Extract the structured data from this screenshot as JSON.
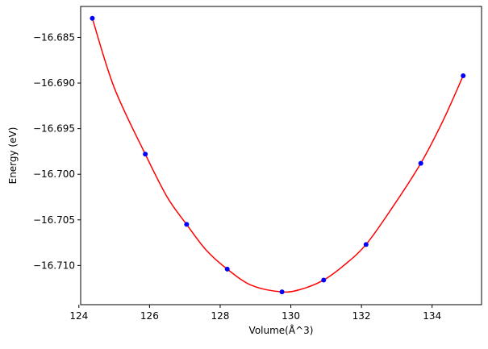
{
  "chart_data": {
    "type": "scatter",
    "title": "",
    "xlabel": "Volume(Å^3)",
    "ylabel": "Energy (eV)",
    "xlim": [
      124.05,
      135.4
    ],
    "ylim": [
      -16.7143,
      -16.6816
    ],
    "grid": false,
    "legend": "none",
    "x_ticks": [
      124,
      126,
      128,
      130,
      132,
      134
    ],
    "x_tick_labels": [
      "124",
      "126",
      "128",
      "130",
      "132",
      "134"
    ],
    "y_ticks": [
      -16.685,
      -16.69,
      -16.695,
      -16.7,
      -16.705,
      -16.71
    ],
    "y_tick_labels": [
      "−16.685",
      "−16.690",
      "−16.695",
      "−16.700",
      "−16.705",
      "−16.710"
    ],
    "series": [
      {
        "type": "scatter",
        "color": "#0000ff",
        "x": [
          124.38,
          125.88,
          127.05,
          128.2,
          129.75,
          130.93,
          132.13,
          133.68,
          134.88
        ],
        "y": [
          -16.6829,
          -16.6978,
          -16.7055,
          -16.7104,
          -16.7129,
          -16.7116,
          -16.7077,
          -16.6988,
          -16.6892
        ]
      },
      {
        "type": "line",
        "color": "#ff0000",
        "x": [
          124.38,
          125.0,
          125.88,
          126.5,
          127.05,
          127.6,
          128.2,
          128.9,
          129.75,
          130.3,
          130.93,
          131.5,
          132.13,
          132.9,
          133.68,
          134.3,
          134.88
        ],
        "y": [
          -16.6829,
          -16.6905,
          -16.6978,
          -16.7025,
          -16.7055,
          -16.7083,
          -16.7104,
          -16.7122,
          -16.7129,
          -16.7126,
          -16.7116,
          -16.71,
          -16.7077,
          -16.7035,
          -16.6988,
          -16.6942,
          -16.6892
        ]
      }
    ]
  }
}
